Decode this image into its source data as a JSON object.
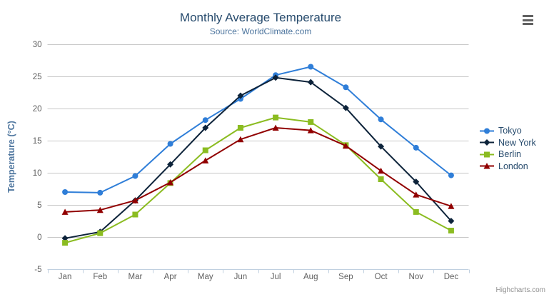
{
  "chart_data": {
    "type": "line",
    "title": "Monthly Average Temperature",
    "subtitle": "Source: WorldClimate.com",
    "categories": [
      "Jan",
      "Feb",
      "Mar",
      "Apr",
      "May",
      "Jun",
      "Jul",
      "Aug",
      "Sep",
      "Oct",
      "Nov",
      "Dec"
    ],
    "xlabel": "",
    "ylabel": "Temperature (°C)",
    "ylim": [
      -5,
      30
    ],
    "yticks": [
      -5,
      0,
      5,
      10,
      15,
      20,
      25,
      30
    ],
    "grid": true,
    "legend_position": "right-middle",
    "series": [
      {
        "name": "Tokyo",
        "color": "#2f7ed8",
        "marker": "circle",
        "values": [
          7.0,
          6.9,
          9.5,
          14.5,
          18.2,
          21.5,
          25.2,
          26.5,
          23.3,
          18.3,
          13.9,
          9.6
        ]
      },
      {
        "name": "New York",
        "color": "#0d233a",
        "marker": "diamond",
        "values": [
          -0.2,
          0.8,
          5.7,
          11.3,
          17.0,
          22.0,
          24.8,
          24.1,
          20.1,
          14.1,
          8.6,
          2.5
        ]
      },
      {
        "name": "Berlin",
        "color": "#8bbc21",
        "marker": "square",
        "values": [
          -0.9,
          0.6,
          3.5,
          8.4,
          13.5,
          17.0,
          18.6,
          17.9,
          14.3,
          9.0,
          3.9,
          1.0
        ]
      },
      {
        "name": "London",
        "color": "#910000",
        "marker": "triangle",
        "values": [
          3.9,
          4.2,
          5.7,
          8.5,
          11.9,
          15.2,
          17.0,
          16.6,
          14.2,
          10.3,
          6.6,
          4.8
        ]
      }
    ]
  },
  "styles": {
    "title_color": "#274b6d",
    "subtitle_color": "#4d759e",
    "axis_label_color": "#606060",
    "axis_title_color": "#4d759e",
    "grid_color": "#c8c8c8",
    "axis_line_color": "#c0d0e0",
    "legend_text_color": "#274b6d",
    "credits_color": "#909090",
    "background": "#ffffff"
  },
  "credits": {
    "label": "Highcharts.com"
  },
  "icons": {
    "context_menu": "hamburger-icon"
  }
}
